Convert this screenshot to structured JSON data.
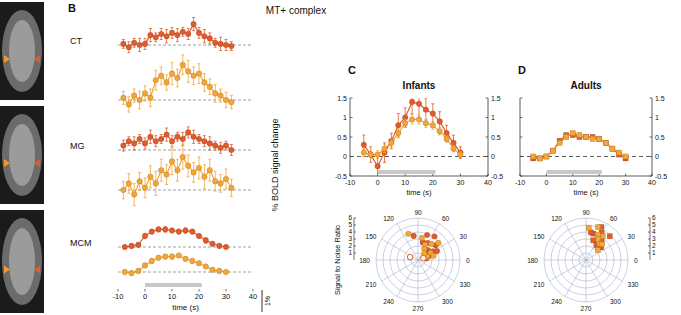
{
  "title": "MT+ complex",
  "chart_data": [
    {
      "type": "line",
      "title": "CT",
      "annotations": [
        "B"
      ],
      "x": [
        -8,
        -6,
        -4,
        -2,
        0,
        2,
        4,
        6,
        8,
        10,
        12,
        14,
        16,
        18,
        20,
        22,
        24,
        26,
        28,
        30,
        32
      ],
      "xlim": [
        -10,
        40
      ],
      "ylim": [
        -1,
        2.2
      ],
      "baseline": 0,
      "tick_labels": false,
      "series": [
        {
          "color": "#e35b2a",
          "marker": "circle",
          "values": [
            0.05,
            -0.1,
            0.1,
            0,
            0.05,
            0.45,
            0.35,
            0.5,
            0.4,
            0.55,
            0.45,
            0.6,
            0.5,
            0.95,
            0.55,
            0.4,
            0.3,
            0.1,
            0.05,
            0,
            -0.05
          ],
          "errors": [
            0.2,
            0.25,
            0.2,
            0.3,
            0.25,
            0.3,
            0.2,
            0.25,
            0.3,
            0.25,
            0.3,
            0.2,
            0.25,
            0.3,
            0.25,
            0.3,
            0.25,
            0.2,
            0.3,
            0.25,
            0.2
          ]
        },
        {
          "color": "#f5a534",
          "marker": "circle",
          "values": [
            0.1,
            -0.2,
            0.2,
            0,
            0.3,
            0.1,
            0.9,
            1.1,
            0.8,
            1.2,
            1.0,
            1.6,
            1.3,
            1.1,
            1.2,
            0.8,
            0.6,
            0.3,
            0.2,
            0,
            -0.1
          ],
          "errors": [
            0.3,
            0.35,
            0.3,
            0.4,
            0.35,
            0.4,
            0.45,
            0.4,
            0.35,
            0.5,
            0.4,
            0.45,
            0.5,
            0.4,
            0.45,
            0.4,
            0.35,
            0.4,
            0.3,
            0.35,
            0.3
          ]
        }
      ]
    },
    {
      "type": "line",
      "title": "MG",
      "x": [
        -8,
        -6,
        -4,
        -2,
        0,
        2,
        4,
        6,
        8,
        10,
        12,
        14,
        16,
        18,
        20,
        22,
        24,
        26,
        28,
        30,
        32
      ],
      "xlim": [
        -10,
        40
      ],
      "ylim": [
        -1,
        2.2
      ],
      "baseline": 0,
      "tick_labels": false,
      "series": [
        {
          "color": "#e35b2a",
          "marker": "circle",
          "values": [
            0.2,
            0.4,
            0.3,
            0.5,
            0.3,
            0.6,
            0.4,
            0.5,
            0.7,
            0.4,
            0.6,
            0.5,
            0.8,
            0.6,
            0.5,
            0.4,
            0.3,
            0.2,
            0.1,
            0.2,
            0
          ],
          "errors": [
            0.25,
            0.2,
            0.3,
            0.2,
            0.25,
            0.3,
            0.25,
            0.2,
            0.3,
            0.25,
            0.2,
            0.3,
            0.25,
            0.3,
            0.2,
            0.25,
            0.3,
            0.2,
            0.25,
            0.2,
            0.25
          ]
        },
        {
          "color": "#f5a534",
          "marker": "circle",
          "values": [
            0,
            0.3,
            -0.2,
            0.4,
            0.1,
            0.6,
            0.3,
            0.9,
            0.7,
            1.3,
            0.9,
            1.5,
            1.1,
            0.8,
            1.0,
            0.6,
            0.9,
            0.4,
            0.3,
            0.5,
            0.1
          ],
          "errors": [
            0.4,
            0.45,
            0.5,
            0.4,
            0.45,
            0.5,
            0.55,
            0.5,
            0.45,
            0.6,
            0.5,
            0.55,
            0.5,
            0.45,
            0.5,
            0.55,
            0.5,
            0.45,
            0.4,
            0.45,
            0.4
          ]
        }
      ]
    },
    {
      "type": "line",
      "title": "MCM",
      "x_label": "time (s)",
      "y_label": "% BOLD signal change",
      "x": [
        -7.5,
        -5,
        -2.5,
        0,
        2.5,
        5,
        7.5,
        10,
        12.5,
        15,
        17.5,
        20,
        22.5,
        25,
        27.5,
        30
      ],
      "xlim": [
        -10,
        40
      ],
      "xticks": [
        -10,
        0,
        10,
        20,
        30,
        40
      ],
      "ylim": [
        -1,
        2.2
      ],
      "baseline": 0,
      "tick_labels": "x",
      "stimulus": [
        0,
        21
      ],
      "scale_bar": {
        "value": 1,
        "label": "1%"
      },
      "series": [
        {
          "color": "#e35b2a",
          "marker": "circle",
          "values": [
            0,
            0.05,
            0.1,
            0.5,
            0.7,
            0.8,
            0.8,
            0.75,
            0.7,
            0.75,
            0.7,
            0.5,
            0.3,
            0.15,
            0.05,
            0
          ],
          "errors": [
            0.08,
            0.1,
            0.1,
            0.12,
            0.1,
            0.1,
            0.12,
            0.1,
            0.1,
            0.12,
            0.1,
            0.1,
            0.12,
            0.1,
            0.08,
            0.08
          ]
        },
        {
          "color": "#f5a534",
          "marker": "circle",
          "values": [
            0,
            -0.05,
            0.05,
            0.3,
            0.5,
            0.65,
            0.7,
            0.7,
            0.75,
            0.6,
            0.5,
            0.4,
            0.25,
            0.1,
            0.05,
            0
          ],
          "errors": [
            0.1,
            0.1,
            0.08,
            0.1,
            0.12,
            0.1,
            0.1,
            0.12,
            0.1,
            0.1,
            0.12,
            0.1,
            0.1,
            0.08,
            0.1,
            0.08
          ]
        }
      ]
    },
    {
      "type": "line",
      "title": "Infants",
      "annotations": [
        "C"
      ],
      "x_label": "time (s)",
      "x": [
        -5,
        -2.5,
        0,
        2.5,
        5,
        7.5,
        10,
        12.5,
        15,
        17.5,
        20,
        22.5,
        25,
        27.5,
        30
      ],
      "xlim": [
        -10,
        40
      ],
      "xticks": [
        -10,
        0,
        10,
        20,
        30,
        40
      ],
      "ylim": [
        -0.5,
        1.5
      ],
      "yticks": [
        -0.5,
        0,
        0.5,
        1,
        1.5
      ],
      "baseline": 0,
      "stimulus": [
        0,
        21
      ],
      "series": [
        {
          "color": "#e35b2a",
          "marker": "circle",
          "values": [
            0.3,
            0.05,
            -0.25,
            0.1,
            0.4,
            0.8,
            1.0,
            1.4,
            1.35,
            1.2,
            1.1,
            0.9,
            0.6,
            0.35,
            0.1
          ],
          "errors": [
            0.25,
            0.2,
            0.3,
            0.25,
            0.2,
            0.3,
            0.25,
            0.3,
            0.35,
            0.3,
            0.25,
            0.25,
            0.2,
            0.2,
            0.15
          ]
        },
        {
          "color": "#f5a534",
          "marker": "circle",
          "values": [
            0.1,
            0.05,
            0.05,
            0.2,
            0.35,
            0.6,
            0.85,
            0.95,
            0.95,
            0.85,
            0.8,
            0.65,
            0.45,
            0.2,
            0.05
          ],
          "errors": [
            0.1,
            0.08,
            0.1,
            0.1,
            0.1,
            0.12,
            0.1,
            0.12,
            0.12,
            0.1,
            0.1,
            0.1,
            0.08,
            0.08,
            0.08
          ]
        }
      ]
    },
    {
      "type": "polar",
      "y_label": "Signal to Noise Ratio",
      "xlim": [
        0,
        360
      ],
      "xticks": [
        0,
        30,
        60,
        90,
        120,
        150,
        180,
        210,
        240,
        270,
        300,
        330
      ],
      "ylim": [
        0,
        6
      ],
      "yticks": [
        1,
        2,
        3,
        4,
        5,
        6
      ],
      "series": [
        {
          "color": "#e35b2a",
          "marker": "circle",
          "x": [
            30,
            40,
            55,
            70,
            60,
            20,
            45,
            75,
            10,
            35,
            100,
            25
          ],
          "values": [
            2.5,
            3.3,
            4.1,
            3.8,
            2.8,
            1.6,
            2.0,
            2.6,
            1.2,
            1.8,
            3.5,
            3.0
          ]
        },
        {
          "color": "#f5a534",
          "marker": "circle",
          "x": [
            40,
            65,
            50,
            30,
            15,
            80,
            20,
            60,
            110,
            45
          ],
          "values": [
            3.8,
            2.4,
            3.0,
            2.1,
            2.3,
            3.2,
            1.4,
            1.8,
            4.0,
            1.3
          ]
        },
        {
          "color": "#e35b2a",
          "marker": "open_circle",
          "x": [
            160,
            20
          ],
          "values": [
            1.2,
            0.8
          ]
        }
      ]
    },
    {
      "type": "line",
      "title": "Adults",
      "annotations": [
        "D"
      ],
      "x_label": "time (s)",
      "x": [
        -5,
        -2.5,
        0,
        2.5,
        5,
        7.5,
        10,
        12.5,
        15,
        17.5,
        20,
        22.5,
        25,
        27.5,
        30
      ],
      "xlim": [
        -10,
        40
      ],
      "xticks": [
        -10,
        0,
        10,
        20,
        30,
        40
      ],
      "ylim": [
        -0.5,
        1.5
      ],
      "yticks": [
        -0.5,
        0,
        0.5,
        1,
        1.5
      ],
      "baseline": 0,
      "stimulus": [
        0,
        21
      ],
      "series": [
        {
          "color": "#e35b2a",
          "marker": "square",
          "values": [
            -0.05,
            -0.05,
            0,
            0.15,
            0.4,
            0.55,
            0.55,
            0.5,
            0.5,
            0.5,
            0.45,
            0.35,
            0.2,
            0.05,
            -0.05
          ],
          "errors": [
            0.03,
            0.03,
            0.04,
            0.04,
            0.05,
            0.05,
            0.05,
            0.05,
            0.05,
            0.05,
            0.05,
            0.05,
            0.04,
            0.04,
            0.03
          ]
        },
        {
          "color": "#f5a534",
          "marker": "square",
          "values": [
            0,
            -0.05,
            0,
            0.15,
            0.35,
            0.5,
            0.6,
            0.55,
            0.5,
            0.45,
            0.45,
            0.35,
            0.2,
            0.1,
            0
          ],
          "errors": [
            0.03,
            0.03,
            0.04,
            0.04,
            0.05,
            0.05,
            0.05,
            0.05,
            0.05,
            0.05,
            0.05,
            0.05,
            0.04,
            0.04,
            0.03
          ]
        }
      ]
    },
    {
      "type": "polar",
      "xlim": [
        0,
        360
      ],
      "xticks": [
        0,
        30,
        60,
        90,
        120,
        150,
        180,
        210,
        240,
        270,
        300,
        330
      ],
      "ylim": [
        0,
        6
      ],
      "yticks": [
        1,
        2,
        3,
        4,
        5,
        6
      ],
      "series": [
        {
          "color": "#e35b2a",
          "marker": "square",
          "x": [
            60,
            50,
            70,
            45,
            55,
            75,
            40,
            65,
            80
          ],
          "values": [
            4.5,
            3.5,
            3.0,
            4.8,
            2.6,
            3.9,
            2.8,
            5.2,
            4.0
          ]
        },
        {
          "color": "#f5a534",
          "marker": "square",
          "x": [
            65,
            55,
            50,
            70,
            45,
            60,
            85,
            40
          ],
          "values": [
            4.0,
            4.2,
            3.0,
            5.0,
            3.2,
            3.5,
            4.6,
            2.2
          ]
        }
      ]
    }
  ]
}
